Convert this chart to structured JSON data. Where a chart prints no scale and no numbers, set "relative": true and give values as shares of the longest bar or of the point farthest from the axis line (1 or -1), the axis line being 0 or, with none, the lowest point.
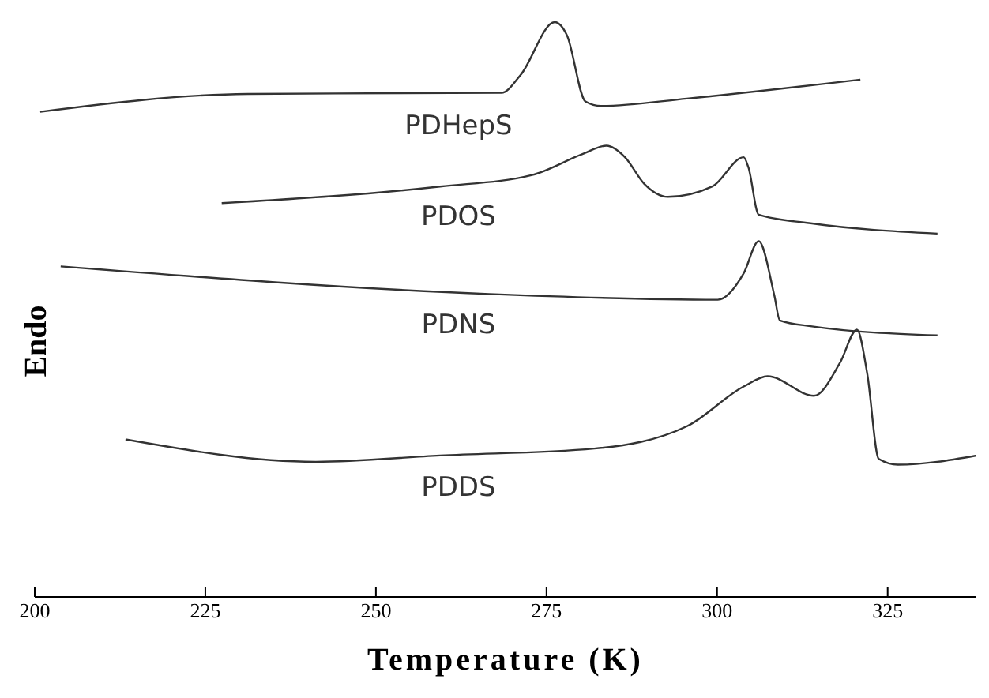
{
  "chart_data": {
    "type": "line",
    "relative": true,
    "xlabel": "Temperature (K)",
    "ylabel": "Endo",
    "xlim": [
      200,
      338
    ],
    "xticks": [
      200,
      225,
      250,
      275,
      300,
      325
    ],
    "marker": "none",
    "line_style": "solid",
    "grid": false,
    "series": [
      {
        "name": "PDHepS",
        "color": "#333333",
        "x": [
          200.8,
          231.2,
          268.4,
          271.2,
          276.2,
          278.0,
          280.7,
          283.0,
          295.6,
          321.0
        ],
        "values": [
          0.844,
          0.875,
          0.877,
          0.908,
          1,
          0.977,
          0.862,
          0.854,
          0.867,
          0.9
        ]
      },
      {
        "name": "PDOS",
        "color": "#333333",
        "x": [
          227.4,
          259.4,
          272.9,
          280.2,
          283.8,
          286.5,
          289.3,
          292.8,
          299.3,
          303.9,
          304.6,
          306.1,
          313.7,
          332.3
        ],
        "values": [
          0.685,
          0.714,
          0.734,
          0.77,
          0.785,
          0.765,
          0.719,
          0.696,
          0.714,
          0.765,
          0.747,
          0.665,
          0.65,
          0.632
        ]
      },
      {
        "name": "PDNS",
        "color": "#333333",
        "x": [
          203.8,
          266.6,
          300.1,
          303.9,
          306.1,
          308.4,
          309.2,
          313.7,
          332.3
        ],
        "values": [
          0.575,
          0.527,
          0.517,
          0.563,
          0.619,
          0.524,
          0.481,
          0.471,
          0.455
        ]
      },
      {
        "name": "PDDS",
        "color": "#333333",
        "x": [
          213.3,
          241.2,
          259.4,
          282.0,
          295.6,
          303.9,
          307.4,
          314.2,
          318.0,
          320.5,
          322.0,
          323.7,
          326.5,
          338
        ],
        "values": [
          0.274,
          0.235,
          0.246,
          0.258,
          0.297,
          0.366,
          0.384,
          0.35,
          0.407,
          0.465,
          0.389,
          0.24,
          0.23,
          0.246
        ]
      }
    ]
  }
}
